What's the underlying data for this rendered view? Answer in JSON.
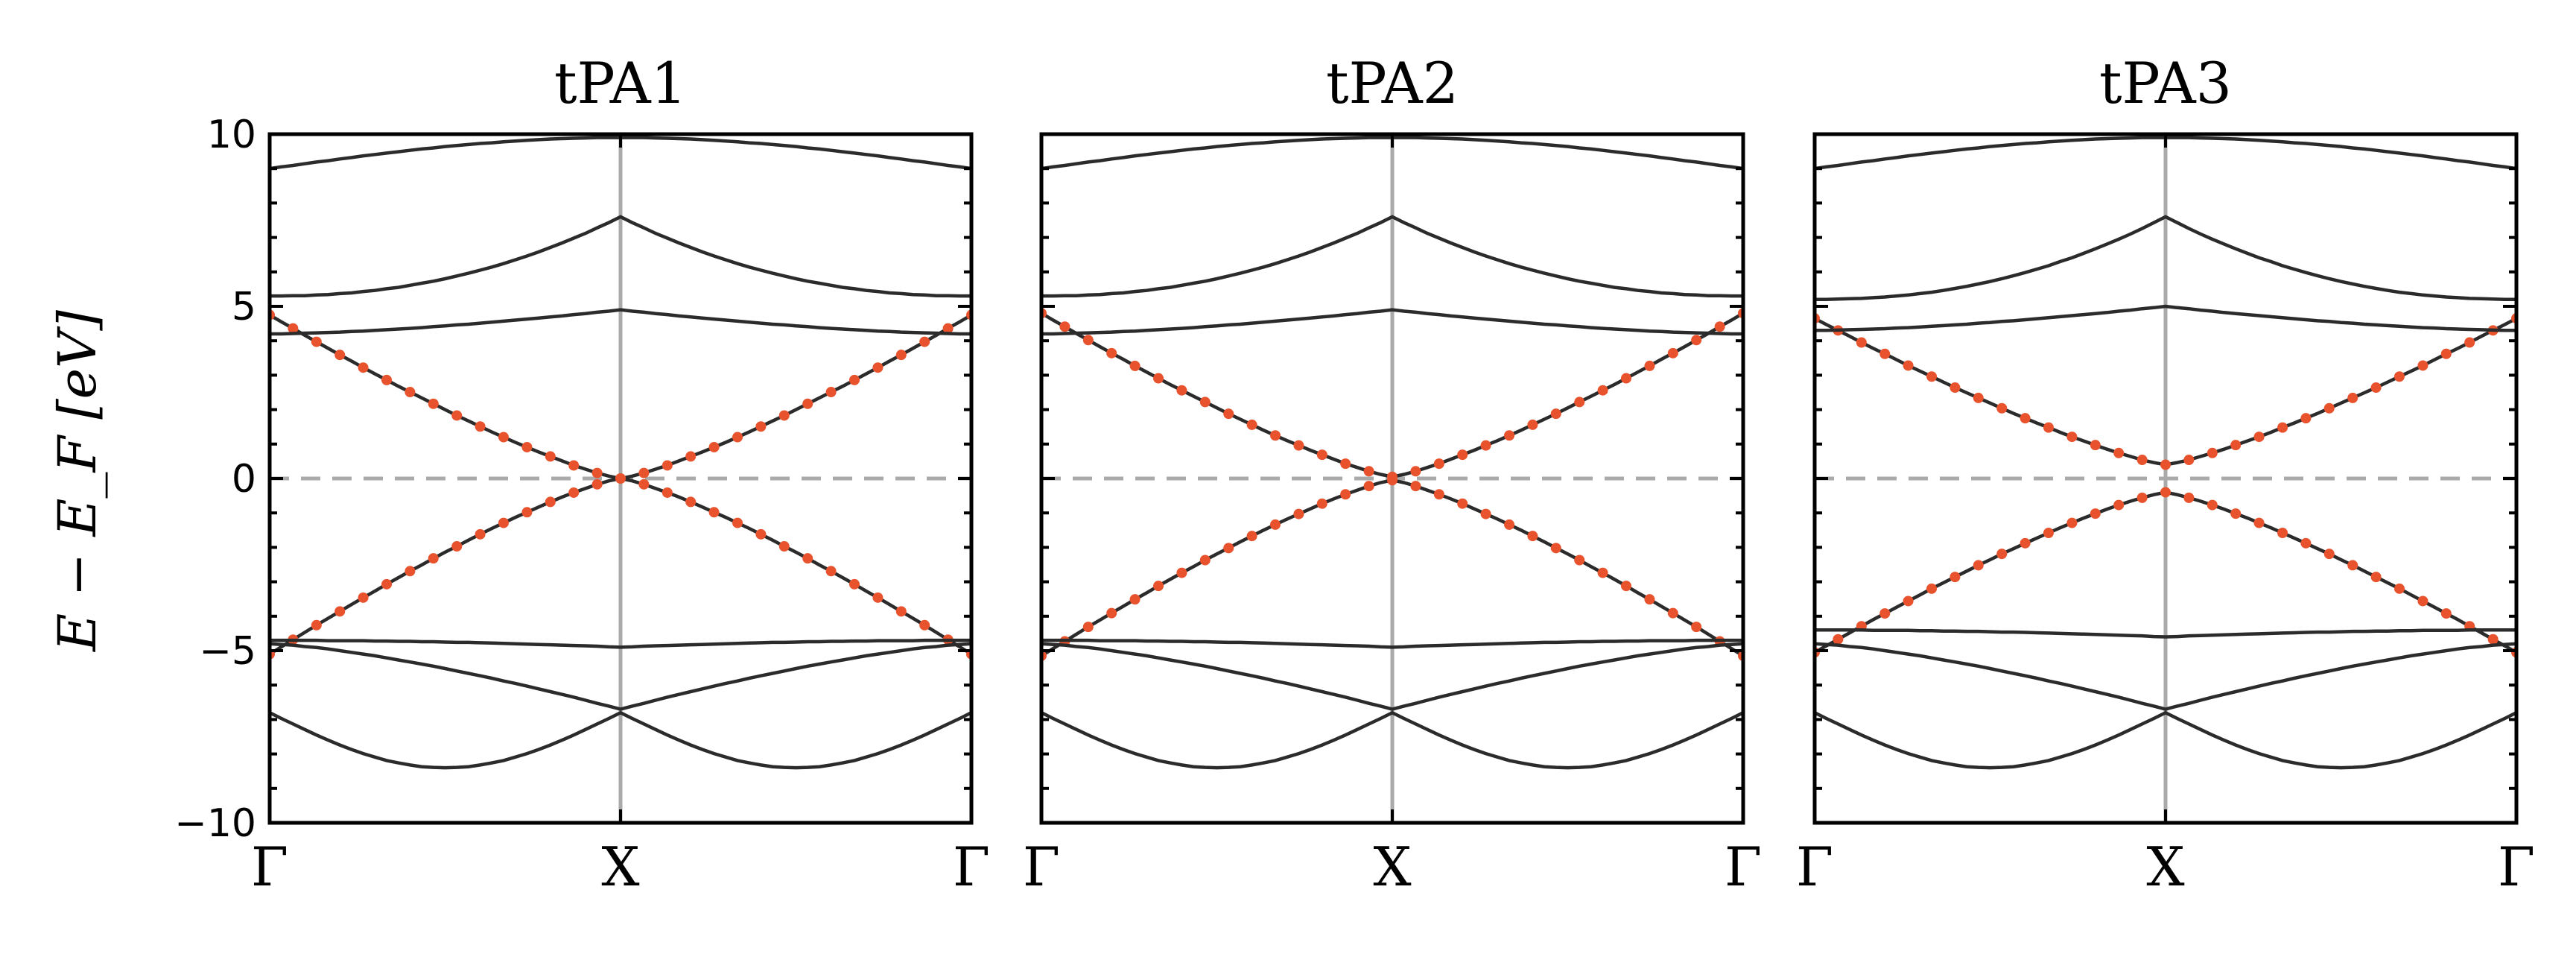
{
  "figure": {
    "ylabel": "E − E_F  [eV]",
    "ylim": [
      -10,
      10
    ],
    "yticks": [
      "10",
      "5",
      "0",
      "−5",
      "−10"
    ],
    "ytick_values": [
      10,
      5,
      0,
      -5,
      -10
    ],
    "xticks": [
      "Γ",
      "X",
      "Γ"
    ],
    "line_color": "#2b2b2b",
    "point_color": "#e8532e",
    "reference_color": "#aaaaaa"
  },
  "chart_data": [
    {
      "type": "line",
      "title": "tPA1",
      "xlabel": "",
      "ylabel": "E − E_F [eV]",
      "ylim": [
        -10,
        10
      ],
      "k_path": [
        "Γ",
        "X",
        "Γ"
      ],
      "fermi_level": 0,
      "gap_at_X": 0.0,
      "pi_band_top": 4.75,
      "pi_band_bottom": -5.1,
      "flat_bands": [
        5.3,
        4.2,
        -4.7
      ],
      "series": []
    },
    {
      "type": "line",
      "title": "tPA2",
      "xlabel": "",
      "ylabel": "",
      "ylim": [
        -10,
        10
      ],
      "k_path": [
        "Γ",
        "X",
        "Γ"
      ],
      "fermi_level": 0,
      "gap_at_X": 0.1,
      "pi_band_top": 4.8,
      "pi_band_bottom": -5.15,
      "flat_bands": [
        5.3,
        4.2,
        -4.7
      ],
      "series": []
    },
    {
      "type": "line",
      "title": "tPA3",
      "xlabel": "",
      "ylabel": "",
      "ylim": [
        -10,
        10
      ],
      "k_path": [
        "Γ",
        "X",
        "Γ"
      ],
      "fermi_level": 0,
      "gap_at_X": 0.8,
      "pi_band_top": 4.65,
      "pi_band_bottom": -5.05,
      "flat_bands": [
        5.2,
        4.3,
        -4.4
      ],
      "series": []
    }
  ]
}
